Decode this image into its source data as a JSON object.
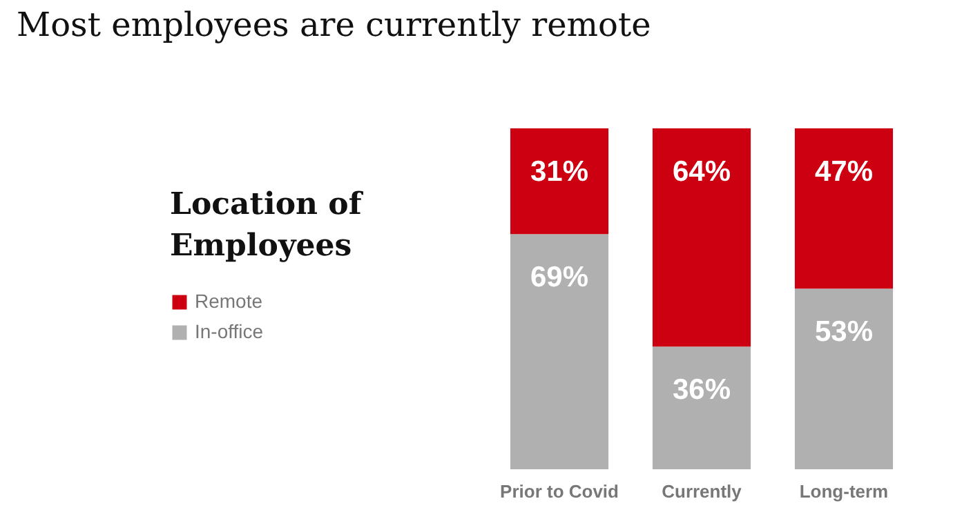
{
  "chart_data": {
    "type": "bar",
    "title": "Most employees are currently remote",
    "legend_title": "Location of Employees",
    "categories": [
      "Prior to Covid",
      "Currently",
      "Long-term"
    ],
    "stacked": true,
    "legend": "left",
    "tick_labels": "x",
    "series": [
      {
        "name": "In-office",
        "color": "#b0b0b0",
        "values": [
          69,
          36,
          53
        ],
        "value_labels": [
          "69%",
          "36%",
          "53%"
        ]
      },
      {
        "name": "Remote",
        "color": "#cc0011",
        "values": [
          31,
          64,
          47
        ],
        "value_labels": [
          "31%",
          "64%",
          "47%"
        ]
      }
    ]
  }
}
